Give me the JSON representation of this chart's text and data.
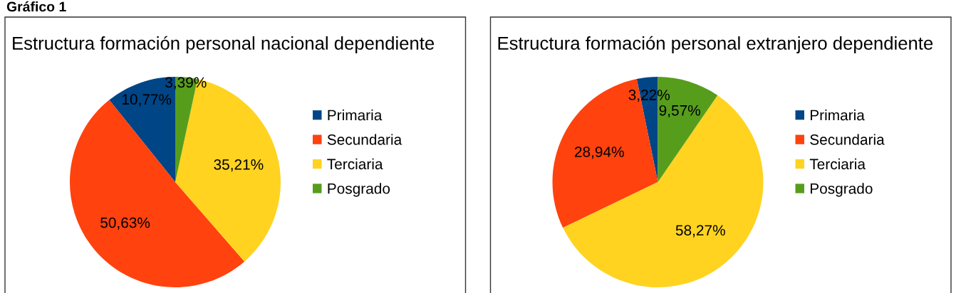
{
  "chart_data": [
    {
      "type": "pie",
      "title": "Estructura formación personal nacional dependiente",
      "categories": [
        "Primaria",
        "Secundaria",
        "Terciaria",
        "Posgrado"
      ],
      "values": [
        10.77,
        50.63,
        35.21,
        3.39
      ],
      "colors": [
        "#004586",
        "#ff420e",
        "#ffd320",
        "#579d1c"
      ],
      "value_labels": [
        "10,77%",
        "50,63%",
        "35,21%",
        "3,39%"
      ],
      "legend": "right",
      "annotations": [
        "Gráfico 1"
      ]
    },
    {
      "type": "pie",
      "title": "Estructura formación personal extranjero dependiente",
      "categories": [
        "Primaria",
        "Secundaria",
        "Terciaria",
        "Posgrado"
      ],
      "values": [
        3.22,
        28.94,
        58.27,
        9.57
      ],
      "colors": [
        "#004586",
        "#ff420e",
        "#ffd320",
        "#579d1c"
      ],
      "value_labels": [
        "3,22%",
        "28,94%",
        "58,27%",
        "9,57%"
      ],
      "legend": "right"
    }
  ]
}
